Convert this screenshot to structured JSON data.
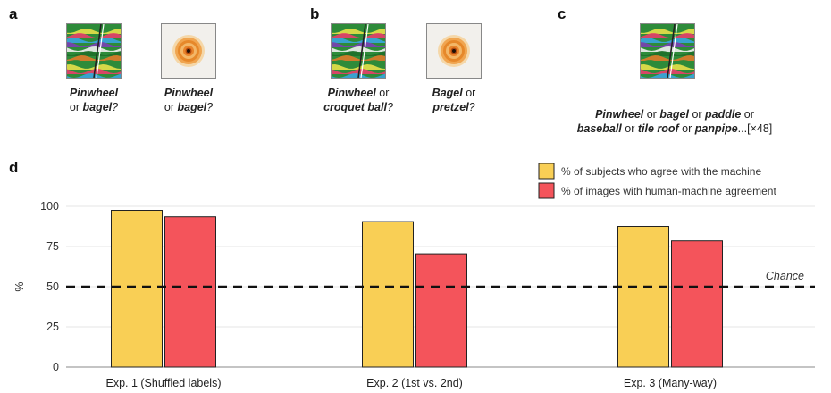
{
  "panels": {
    "a": {
      "letter": "a",
      "cap1": {
        "l1_b": "Pinwheel",
        "l2_pre": "or ",
        "l2_b": "bagel",
        "l2_post": "?"
      },
      "cap2": {
        "l1_b": "Pinwheel",
        "l2_pre": "or ",
        "l2_b": "bagel",
        "l2_post": "?"
      }
    },
    "b": {
      "letter": "b",
      "cap1": {
        "l1_b": "Pinwheel",
        "l1_post": " or",
        "l2_b": "croquet ball",
        "l2_post": "?"
      },
      "cap2": {
        "l1_b": "Bagel",
        "l1_post": " or",
        "l2_b": "pretzel",
        "l2_post": "?"
      }
    },
    "c": {
      "letter": "c",
      "line1": {
        "b1": "Pinwheel",
        "t1": " or ",
        "b2": "bagel",
        "t2": " or ",
        "b3": "paddle",
        "t3": " or"
      },
      "line2": {
        "b1": "baseball",
        "t1": " or ",
        "b2": "tile roof",
        "t2": " or ",
        "b3": "panpipe",
        "t3": "...[×48]"
      }
    },
    "d": {
      "letter": "d"
    }
  },
  "icons": {
    "pinwheel_image": "pinwheel-stimulus-icon",
    "bagel_image": "bagel-stimulus-icon"
  },
  "chart_data": {
    "type": "bar",
    "categories": [
      "Exp. 1 (Shuffled labels)",
      "Exp. 2 (1st vs. 2nd)",
      "Exp. 3 (Many-way)"
    ],
    "series": [
      {
        "name": "% of subjects who agree with the machine",
        "values": [
          97.5,
          90.5,
          87.5
        ],
        "color": "#F9CF55"
      },
      {
        "name": "% of images with human-machine agreement",
        "values": [
          93.5,
          70.5,
          78.5
        ],
        "color": "#F4545B"
      }
    ],
    "ylabel": "%",
    "ylim": [
      0,
      100
    ],
    "yticks": [
      0,
      25,
      50,
      75,
      100
    ],
    "reference_line": {
      "value": 50,
      "label": "Chance",
      "style": "dashed"
    },
    "grid": true,
    "legend_position": "top-right"
  }
}
